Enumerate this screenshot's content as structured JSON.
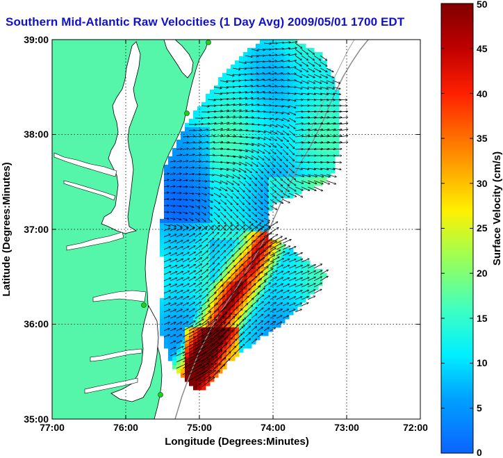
{
  "title": "Southern Mid-Atlantic Raw Velocities (1 Day Avg) 2009/05/01 1700 EDT",
  "map": {
    "xlabel": "Longitude (Degrees:Minutes)",
    "ylabel": "Latitude (Degrees:Minutes)",
    "lon_range": [
      -77,
      -72
    ],
    "lat_range": [
      35,
      39
    ],
    "x_ticks": [
      "77:00",
      "76:00",
      "75:00",
      "74:00",
      "73:00",
      "72:00"
    ],
    "y_ticks": [
      "35:00",
      "36:00",
      "37:00",
      "38:00",
      "39:00"
    ],
    "grid": "dotted",
    "colors": {
      "land": "#55f5aa",
      "water": "#ffffff",
      "coast": "#000000",
      "isobath": "#808080",
      "site_marker": "#22cc22"
    }
  },
  "colorbar": {
    "label": "Surface Velocity (cm/s)",
    "range": [
      0,
      50
    ],
    "ticks": [
      "0",
      "5",
      "10",
      "15",
      "20",
      "25",
      "30",
      "35",
      "40",
      "45",
      "50"
    ],
    "colormap": "jet"
  }
}
